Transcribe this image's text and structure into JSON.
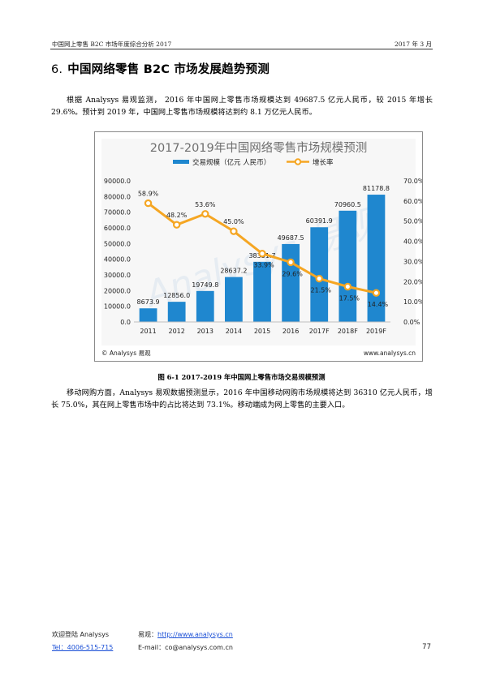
{
  "header": {
    "left": "中国网上零售 B2C 市场年度综合分析 2017",
    "right": "2017 年 3 月"
  },
  "section": {
    "number": "6.",
    "title": "中国网络零售 B2C 市场发展趋势预测"
  },
  "paragraphs": {
    "p1": "根据 Analysys 易观监测， 2016 年中国网上零售市场规模达到 49687.5 亿元人民币，较 2015 年增长 29.6%。预计到 2019 年，中国网上零售市场规模将达到约 8.1 万亿元人民币。",
    "p2": "移动网购方面，Analysys 易观数据预测显示，2016 年中国移动网购市场规模将达到 36310 亿元人民币，增长 75.0%，其在网上零售市场中的占比将达到 73.1%。移动端成为网上零售的主要入口。"
  },
  "figure_caption": "图 6-1 2017-2019 年中国网上零售市场交易规模预测",
  "chart_footer": {
    "left": "© Analysys 易观",
    "right": "www.analysys.cn"
  },
  "watermark_text": "Analysys 易观",
  "colors": {
    "bar": "#1f87cf",
    "line": "#f5a623",
    "marker_fill": "#ffffff",
    "plot_bg": "#f7f7f7",
    "title": "#6f6f6f"
  },
  "chart_data": {
    "type": "bar",
    "title": "2017-2019年中国网络零售市场规模预测",
    "categories": [
      "2011",
      "2012",
      "2013",
      "2014",
      "2015",
      "2016",
      "2017F",
      "2018F",
      "2019F"
    ],
    "series": [
      {
        "name": "交易规模（亿元 人民币）",
        "type": "bar",
        "axis": "left",
        "values": [
          8673.9,
          12856.0,
          19749.8,
          28637.2,
          38351.7,
          49687.5,
          60391.9,
          70960.5,
          81178.8
        ],
        "labels": [
          "8673.9",
          "12856.0",
          "19749.8",
          "28637.2",
          "38351.7",
          "49687.5",
          "60391.9",
          "70960.5",
          "81178.8"
        ]
      },
      {
        "name": "增长率",
        "type": "line",
        "axis": "right",
        "values": [
          58.9,
          48.2,
          53.6,
          45.0,
          33.9,
          29.6,
          21.5,
          17.5,
          14.4
        ],
        "labels": [
          "58.9%",
          "48.2%",
          "53.6%",
          "45.0%",
          "33.9%",
          "29.6%",
          "21.5%",
          "17.5%",
          "14.4%"
        ]
      }
    ],
    "y_left": {
      "min": 0,
      "max": 90000,
      "step": 10000,
      "ticks": [
        "0.0",
        "10000.0",
        "20000.0",
        "30000.0",
        "40000.0",
        "50000.0",
        "60000.0",
        "70000.0",
        "80000.0",
        "90000.0"
      ]
    },
    "y_right": {
      "min": 0,
      "max": 70,
      "step": 10,
      "ticks": [
        "0.0%",
        "10.0%",
        "20.0%",
        "30.0%",
        "40.0%",
        "50.0%",
        "60.0%",
        "70.0%"
      ]
    },
    "legend_position": "top-center",
    "grid": false
  },
  "footer": {
    "welcome": "欢迎登陆 Analysys",
    "site_label": "易观：",
    "site_url": "http://www.analysys.cn",
    "tel": "Tel：4006-515-715",
    "email": "E-mail：co@analysys.com.cn",
    "page_number": "77"
  }
}
